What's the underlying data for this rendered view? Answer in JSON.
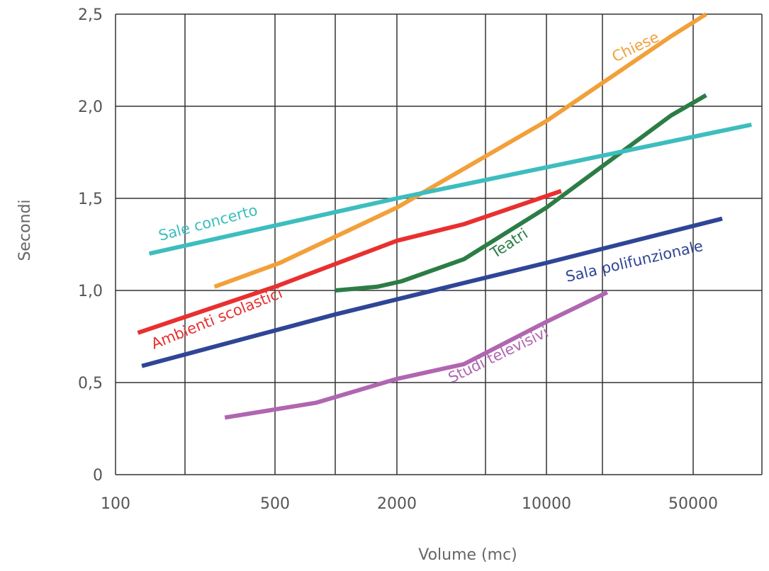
{
  "chart_data": {
    "type": "line",
    "title": "",
    "xlabel": "Volume (mc)",
    "ylabel": "Secondi",
    "x_tick_labels": [
      "100",
      "500",
      "2000",
      "10000",
      "50000"
    ],
    "y_tick_labels": [
      "0",
      "0,5",
      "1,0",
      "1,5",
      "2,0",
      "2,5"
    ],
    "ylim": [
      0,
      2.5
    ],
    "grid": true,
    "series": [
      {
        "name": "Chiese",
        "color": "#f2a03a",
        "points": [
          [
            270,
            1.02
          ],
          [
            530,
            1.15
          ],
          [
            2000,
            1.45
          ],
          [
            10000,
            1.92
          ],
          [
            40000,
            2.38
          ],
          [
            57000,
            2.5
          ]
        ]
      },
      {
        "name": "Teatri",
        "color": "#2c7d45",
        "points": [
          [
            1000,
            1.0
          ],
          [
            1600,
            1.02
          ],
          [
            2100,
            1.05
          ],
          [
            4000,
            1.17
          ],
          [
            10000,
            1.45
          ],
          [
            40000,
            1.95
          ],
          [
            57000,
            2.06
          ]
        ]
      },
      {
        "name": "Sale concerto",
        "color": "#3dbdbe",
        "points": [
          [
            140,
            1.2
          ],
          [
            2000,
            1.5
          ],
          [
            90000,
            1.9
          ]
        ]
      },
      {
        "name": "Ambienti scolastici",
        "color": "#e8302f",
        "points": [
          [
            125,
            0.77
          ],
          [
            500,
            1.02
          ],
          [
            2000,
            1.27
          ],
          [
            4000,
            1.36
          ],
          [
            12000,
            1.54
          ]
        ]
      },
      {
        "name": "Sala polifunzionale",
        "color": "#2f4596",
        "points": [
          [
            130,
            0.59
          ],
          [
            1000,
            0.87
          ],
          [
            10000,
            1.15
          ],
          [
            67000,
            1.39
          ]
        ]
      },
      {
        "name": "Studi televisivi",
        "color": "#b066b0",
        "points": [
          [
            300,
            0.31
          ],
          [
            800,
            0.39
          ],
          [
            2000,
            0.52
          ],
          [
            4000,
            0.6
          ],
          [
            10000,
            0.83
          ],
          [
            21000,
            0.99
          ]
        ]
      }
    ]
  }
}
